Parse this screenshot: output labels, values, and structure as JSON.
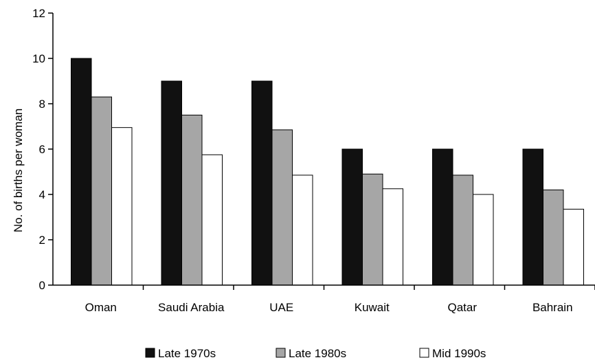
{
  "chart_data": {
    "type": "bar",
    "categories": [
      "Oman",
      "Saudi Arabia",
      "UAE",
      "Kuwait",
      "Qatar",
      "Bahrain"
    ],
    "series": [
      {
        "name": "Late 1970s",
        "color": "#111111",
        "values": [
          10,
          9,
          9,
          6,
          6,
          6
        ]
      },
      {
        "name": "Late 1980s",
        "color": "#a6a6a6",
        "values": [
          8.3,
          7.5,
          6.85,
          4.9,
          4.85,
          4.2
        ]
      },
      {
        "name": "Mid 1990s",
        "color": "#ffffff",
        "values": [
          6.95,
          5.75,
          4.85,
          4.25,
          4.0,
          3.35
        ]
      }
    ],
    "title": "",
    "xlabel": "",
    "ylabel": "No. of births per woman",
    "ylim": [
      0,
      12
    ],
    "yticks": [
      "0",
      "2",
      "4",
      "6",
      "8",
      "10",
      "12"
    ],
    "grid": false,
    "legend_position": "bottom"
  }
}
